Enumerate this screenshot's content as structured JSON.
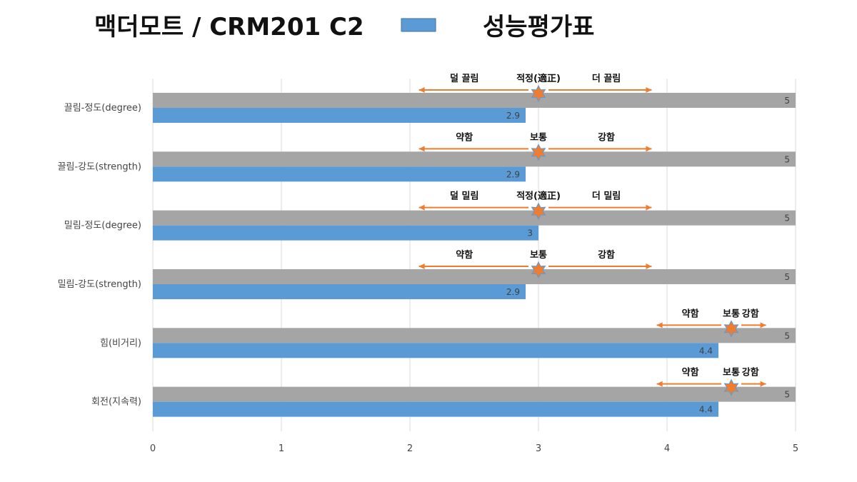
{
  "title": "맥더모트 / CRM201 C2",
  "legend": {
    "label": "성능평가표",
    "color": "#5b9bd5"
  },
  "chart_data": {
    "type": "bar",
    "orientation": "horizontal",
    "categories": [
      "끌림-정도(degree)",
      "끌림-강도(strength)",
      "밀림-정도(degree)",
      "밀림-강도(strength)",
      "힘(비거리)",
      "회전(지속력)"
    ],
    "series": [
      {
        "name": "",
        "color": "#a5a5a5",
        "values": [
          5,
          5,
          5,
          5,
          5,
          5
        ]
      },
      {
        "name": "성능평가표",
        "color": "#5b9bd5",
        "values": [
          2.9,
          2.9,
          3,
          2.9,
          4.4,
          4.4
        ]
      }
    ],
    "xlim": [
      0,
      5
    ],
    "xticks": [
      "0",
      "1",
      "2",
      "3",
      "4",
      "5"
    ],
    "grid": true,
    "annotations": [
      {
        "left": "덜 끌림",
        "center": "적정(適正)",
        "right": "더 끌림",
        "center_value": 3,
        "range": [
          2.07,
          3.88
        ]
      },
      {
        "left": "약함",
        "center": "보통",
        "right": "강함",
        "center_value": 3,
        "range": [
          2.07,
          3.88
        ]
      },
      {
        "left": "덜 밀림",
        "center": "적정(適正)",
        "right": "더 밀림",
        "center_value": 3,
        "range": [
          2.07,
          3.88
        ]
      },
      {
        "left": "약함",
        "center": "보통",
        "right": "강함",
        "center_value": 3,
        "range": [
          2.07,
          3.88
        ]
      },
      {
        "left": "약함",
        "center": "보통",
        "right": "강함",
        "center_value": 4.5,
        "range": [
          3.92,
          4.77
        ]
      },
      {
        "left": "약함",
        "center": "보통",
        "right": "강함",
        "center_value": 4.5,
        "range": [
          3.92,
          4.77
        ]
      }
    ],
    "annotation_color": "#ed7d31"
  }
}
